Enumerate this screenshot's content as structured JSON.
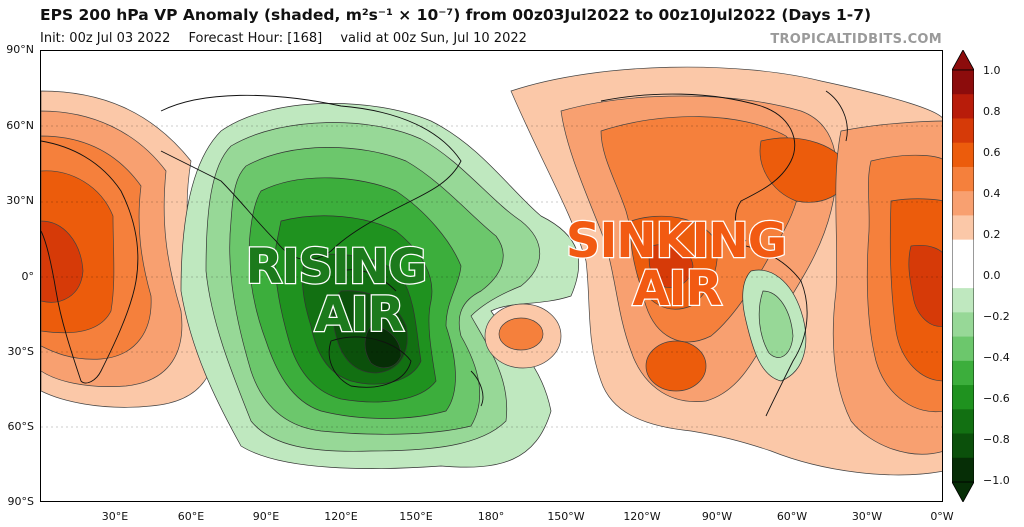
{
  "header": {
    "title": "EPS 200 hPa VP Anomaly (shaded, m²s⁻¹ × 10⁻⁷) from 00z03Jul2022 to 00z10Jul2022 (Days 1-7)",
    "init": "Init: 00z Jul 03 2022",
    "forecast_hour": "Forecast Hour: [168]",
    "valid": "valid at 00z Sun, Jul 10 2022",
    "brand": "TROPICALTIDBITS.COM"
  },
  "map": {
    "lat_labels": [
      "90°N",
      "60°N",
      "30°N",
      "0°",
      "30°S",
      "60°S",
      "90°S"
    ],
    "lon_labels": [
      "30°E",
      "60°E",
      "90°E",
      "120°E",
      "150°E",
      "180°",
      "150°W",
      "120°W",
      "90°W",
      "60°W",
      "30°W",
      "0°W"
    ],
    "annotations": {
      "rising_line1": "RISING",
      "rising_line2": "AIR",
      "sinking_line1": "SINKING",
      "sinking_line2": "AIR"
    },
    "annotation_colors": {
      "rising": "#1c7a1c",
      "sinking": "#f25a12"
    }
  },
  "colorbar": {
    "labels": [
      "1.0",
      "0.8",
      "0.6",
      "0.4",
      "0.2",
      "0.0",
      "−0.2",
      "−0.4",
      "−0.6",
      "−0.8",
      "−1.0"
    ],
    "colors": [
      "#8c0c0c",
      "#b81c0a",
      "#d63a08",
      "#ec5c0c",
      "#f5803c",
      "#f8a070",
      "#fbc8a8",
      "#ffffff",
      "#ffffff",
      "#bfe8bf",
      "#97d897",
      "#6cc76c",
      "#3cae3c",
      "#1f921f",
      "#127012",
      "#0b500b",
      "#062e06"
    ]
  }
}
